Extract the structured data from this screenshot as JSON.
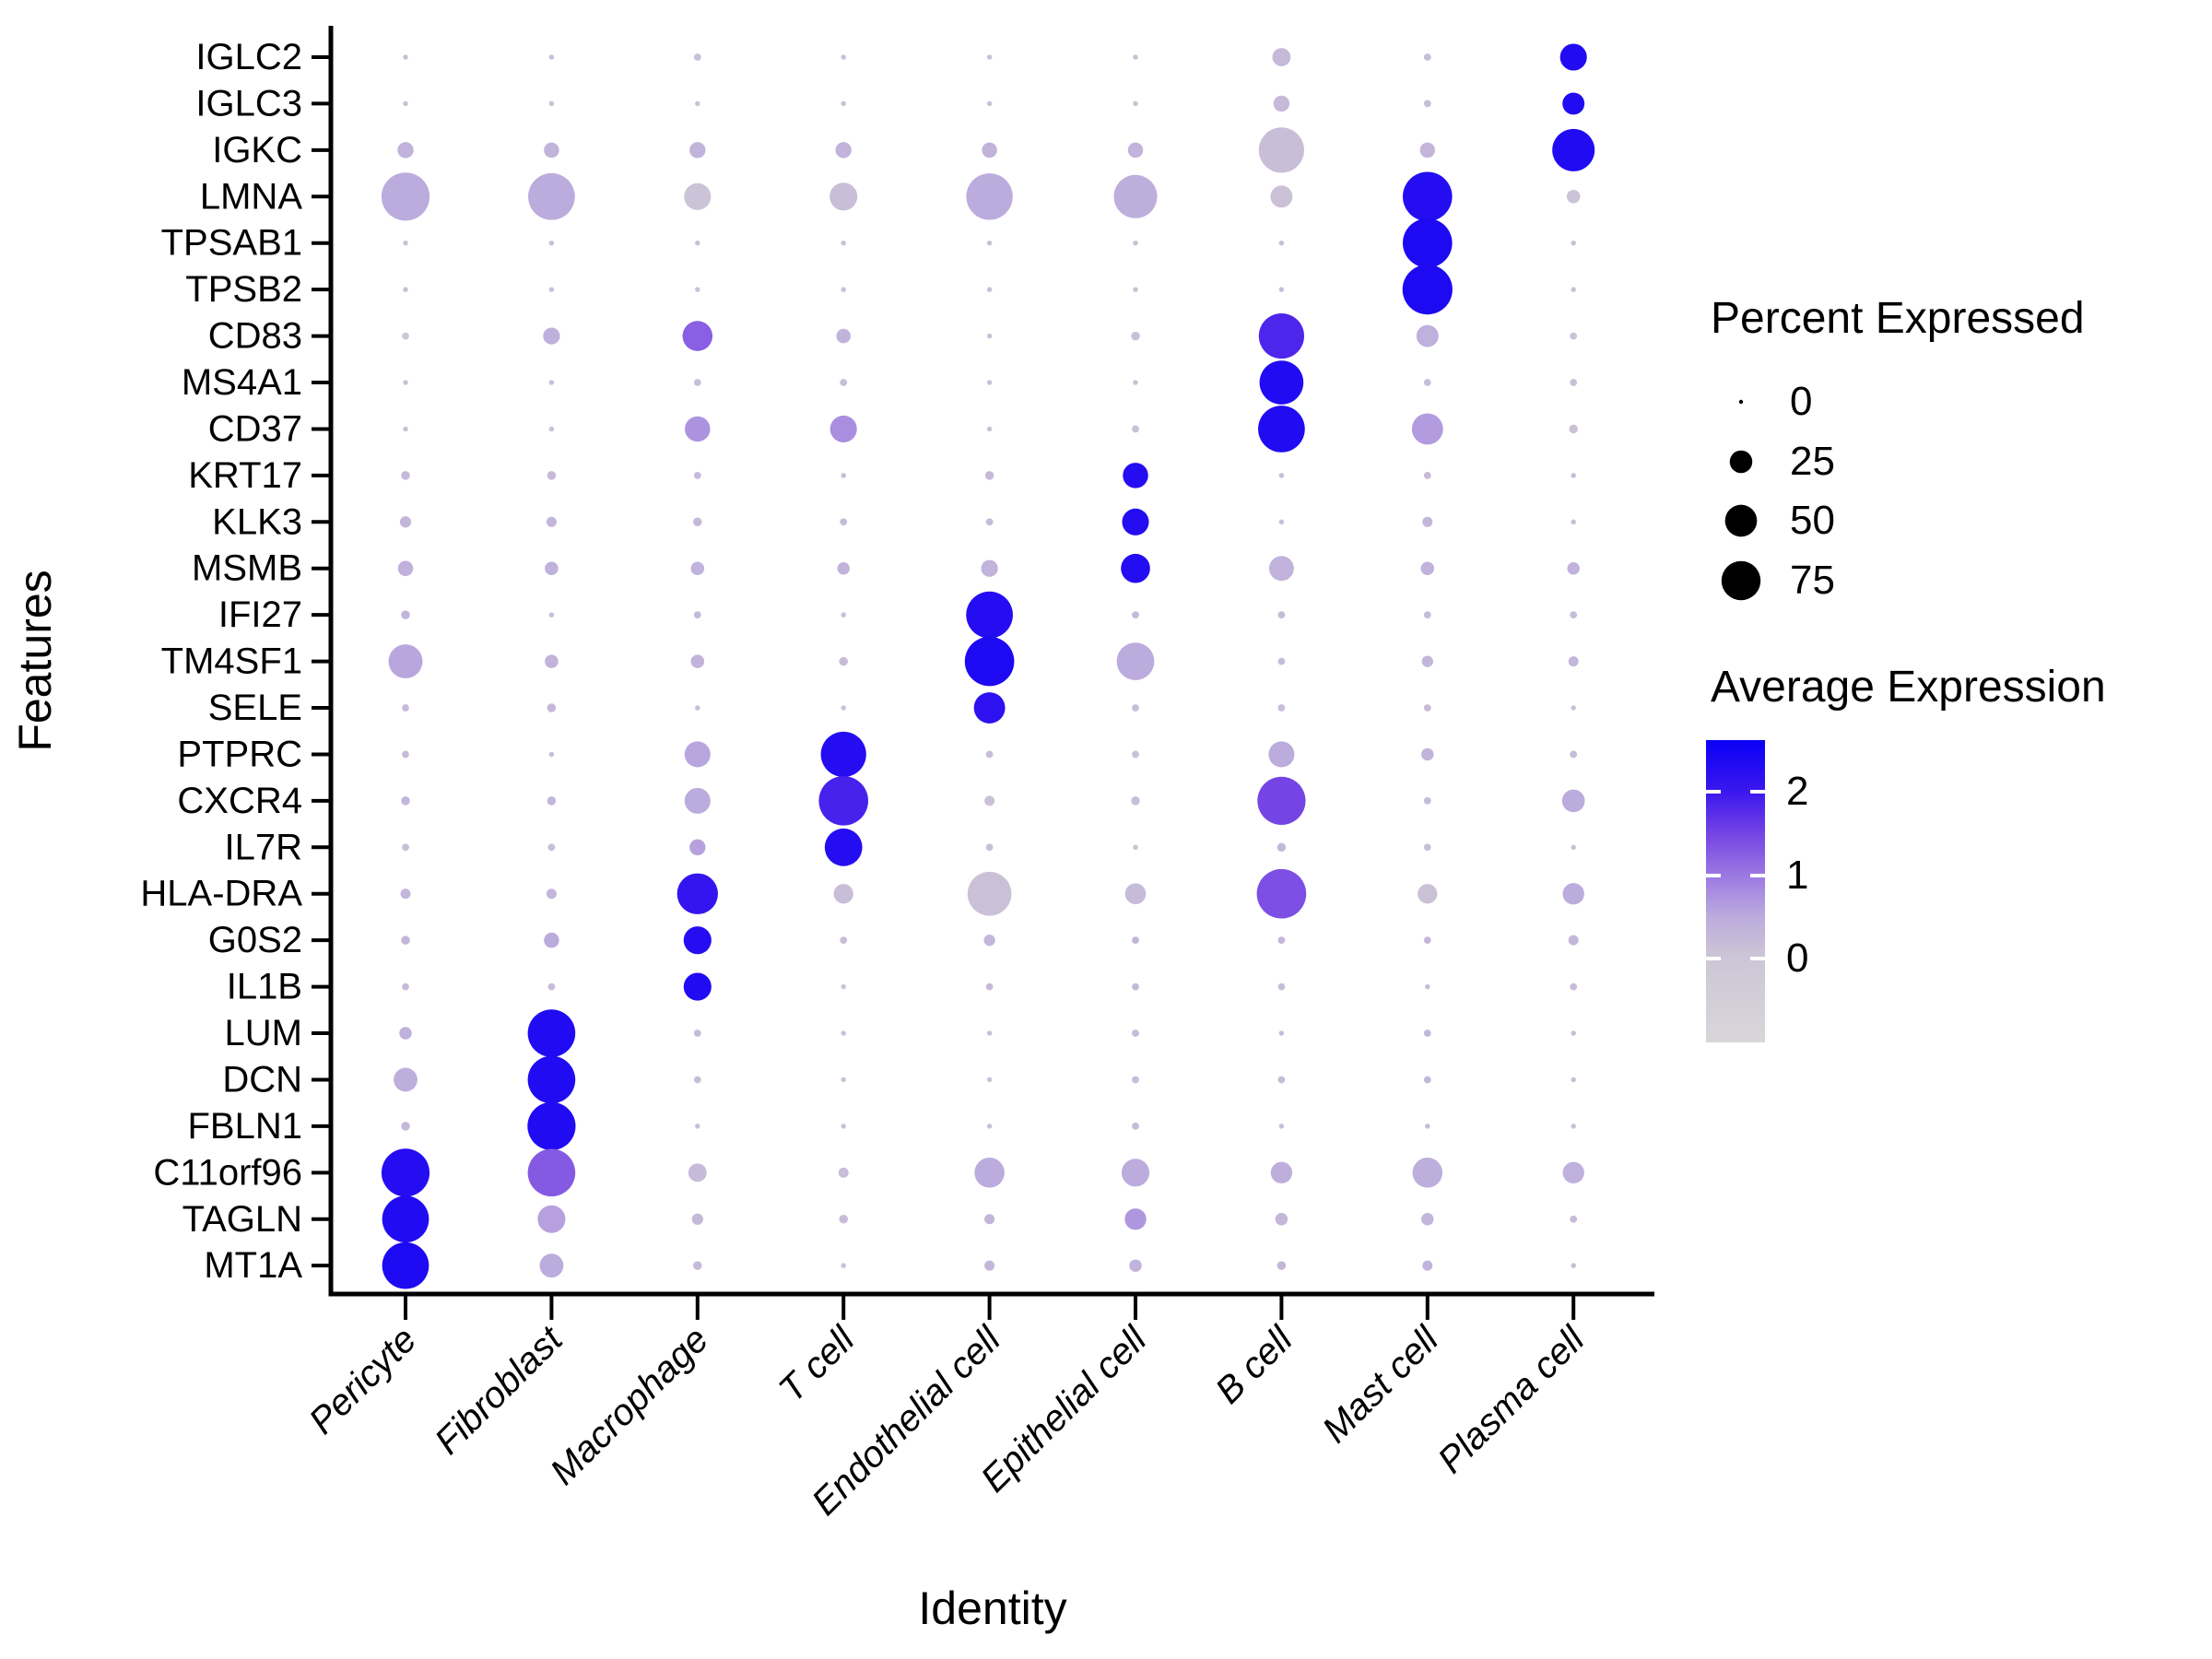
{
  "chart_data": {
    "type": "scatter",
    "subtype": "dotplot",
    "title": "",
    "xlabel": "Identity",
    "ylabel": "Features",
    "grid": false,
    "x_categories": [
      "Pericyte",
      "Fibroblast",
      "Macrophage",
      "T cell",
      "Endothelial cell",
      "Epithelial cell",
      "B cell",
      "Mast cell",
      "Plasma cell"
    ],
    "y_categories": [
      "IGLC2",
      "IGLC3",
      "IGKC",
      "LMNA",
      "TPSAB1",
      "TPSB2",
      "CD83",
      "MS4A1",
      "CD37",
      "KRT17",
      "KLK3",
      "MSMB",
      "IFI27",
      "TM4SF1",
      "SELE",
      "PTPRC",
      "CXCR4",
      "IL7R",
      "HLA-DRA",
      "G0S2",
      "IL1B",
      "LUM",
      "DCN",
      "FBLN1",
      "C11orf96",
      "TAGLN",
      "MT1A"
    ],
    "series": [
      {
        "gene": "IGLC2",
        "percent_expressed": [
          1,
          1,
          2,
          1,
          1,
          1,
          13,
          2,
          28
        ],
        "avg_expression": [
          0.1,
          0.1,
          0.15,
          0.1,
          0.1,
          0.1,
          0.25,
          0.15,
          2.35
        ]
      },
      {
        "gene": "IGLC3",
        "percent_expressed": [
          1,
          1,
          1,
          1,
          1,
          1,
          10,
          2,
          19
        ],
        "avg_expression": [
          0.1,
          0.1,
          0.1,
          0.1,
          0.1,
          0.1,
          0.25,
          0.15,
          2.35
        ]
      },
      {
        "gene": "IGKC",
        "percent_expressed": [
          10,
          9,
          10,
          10,
          9,
          9,
          80,
          9,
          70
        ],
        "avg_expression": [
          0.35,
          0.35,
          0.35,
          0.35,
          0.35,
          0.35,
          0.15,
          0.3,
          2.35
        ]
      },
      {
        "gene": "LMNA",
        "percent_expressed": [
          90,
          85,
          28,
          30,
          84,
          73,
          19,
          95,
          7
        ],
        "avg_expression": [
          0.5,
          0.5,
          0.05,
          0.15,
          0.5,
          0.45,
          0.1,
          2.3,
          0.05
        ]
      },
      {
        "gene": "TPSAB1",
        "percent_expressed": [
          1,
          1,
          1,
          1,
          1,
          1,
          1,
          95,
          1
        ],
        "avg_expression": [
          0.1,
          0.1,
          0.1,
          0.1,
          0.1,
          0.1,
          0.15,
          2.4,
          0.1
        ]
      },
      {
        "gene": "TPSB2",
        "percent_expressed": [
          1,
          1,
          1,
          1,
          1,
          1,
          1,
          97,
          1
        ],
        "avg_expression": [
          0.1,
          0.1,
          0.1,
          0.1,
          0.1,
          0.1,
          0.15,
          2.4,
          0.1
        ]
      },
      {
        "gene": "CD83",
        "percent_expressed": [
          2,
          11,
          35,
          8,
          1,
          3,
          80,
          19,
          2
        ],
        "avg_expression": [
          0.0,
          0.4,
          1.25,
          0.35,
          0.1,
          0.1,
          1.85,
          0.4,
          0.1
        ]
      },
      {
        "gene": "MS4A1",
        "percent_expressed": [
          1,
          1,
          2,
          2,
          1,
          1,
          75,
          2,
          2
        ],
        "avg_expression": [
          0.1,
          0.1,
          0.15,
          0.15,
          0.1,
          0.1,
          2.35,
          0.15,
          0.1
        ]
      },
      {
        "gene": "CD37",
        "percent_expressed": [
          1,
          1,
          25,
          28,
          1,
          2,
          85,
          38,
          3
        ],
        "avg_expression": [
          0.1,
          0.1,
          0.75,
          0.8,
          0.1,
          0.1,
          2.35,
          0.65,
          0.1
        ]
      },
      {
        "gene": "KRT17",
        "percent_expressed": [
          3,
          3,
          2,
          1,
          3,
          25,
          1,
          2,
          1
        ],
        "avg_expression": [
          0.25,
          0.25,
          0.2,
          0.15,
          0.25,
          2.3,
          0.15,
          0.2,
          0.15
        ]
      },
      {
        "gene": "KLK3",
        "percent_expressed": [
          5,
          4,
          3,
          2,
          2,
          28,
          1,
          4,
          1
        ],
        "avg_expression": [
          0.3,
          0.3,
          0.25,
          0.2,
          0.2,
          2.3,
          0.15,
          0.3,
          0.15
        ]
      },
      {
        "gene": "MSMB",
        "percent_expressed": [
          9,
          7,
          7,
          6,
          11,
          33,
          24,
          7,
          6
        ],
        "avg_expression": [
          0.4,
          0.4,
          0.35,
          0.35,
          0.35,
          2.3,
          0.35,
          0.35,
          0.35
        ]
      },
      {
        "gene": "IFI27",
        "percent_expressed": [
          3,
          1,
          2,
          1,
          85,
          2,
          2,
          2,
          2
        ],
        "avg_expression": [
          0.3,
          0.2,
          0.25,
          0.15,
          2.3,
          0.25,
          0.2,
          0.2,
          0.2
        ]
      },
      {
        "gene": "TM4SF1",
        "percent_expressed": [
          45,
          7,
          7,
          3,
          95,
          55,
          2,
          5,
          4
        ],
        "avg_expression": [
          0.55,
          0.35,
          0.35,
          0.2,
          2.4,
          0.5,
          0.2,
          0.3,
          0.3
        ]
      },
      {
        "gene": "SELE",
        "percent_expressed": [
          2,
          3,
          1,
          1,
          38,
          2,
          2,
          2,
          1
        ],
        "avg_expression": [
          0.2,
          0.25,
          0.15,
          0.1,
          2.2,
          0.15,
          0.15,
          0.2,
          0.1
        ]
      },
      {
        "gene": "PTPRC",
        "percent_expressed": [
          2,
          1,
          26,
          80,
          2,
          2,
          26,
          6,
          2
        ],
        "avg_expression": [
          0.2,
          0.15,
          0.55,
          2.3,
          0.15,
          0.1,
          0.5,
          0.35,
          0.2
        ]
      },
      {
        "gene": "CXCR4",
        "percent_expressed": [
          3,
          3,
          26,
          95,
          4,
          3,
          90,
          2,
          20
        ],
        "avg_expression": [
          0.3,
          0.3,
          0.5,
          1.9,
          0.1,
          0.15,
          1.5,
          0.2,
          0.5
        ]
      },
      {
        "gene": "IL7R",
        "percent_expressed": [
          2,
          2,
          10,
          55,
          2,
          1,
          3,
          2,
          1
        ],
        "avg_expression": [
          0.15,
          0.15,
          0.6,
          2.3,
          0.15,
          0.1,
          0.25,
          0.15,
          0.1
        ]
      },
      {
        "gene": "HLA-DRA",
        "percent_expressed": [
          4,
          4,
          65,
          15,
          75,
          17,
          95,
          15,
          18
        ],
        "avg_expression": [
          0.3,
          0.3,
          2.1,
          0.15,
          0.1,
          0.2,
          1.4,
          0.1,
          0.5
        ]
      },
      {
        "gene": "G0S2",
        "percent_expressed": [
          3,
          9,
          30,
          2,
          5,
          2,
          2,
          2,
          4
        ],
        "avg_expression": [
          0.3,
          0.5,
          2.3,
          0.15,
          0.3,
          0.3,
          0.3,
          0.3,
          0.3
        ]
      },
      {
        "gene": "IL1B",
        "percent_expressed": [
          2,
          2,
          30,
          1,
          2,
          2,
          2,
          1,
          2
        ],
        "avg_expression": [
          0.2,
          0.2,
          2.35,
          0.1,
          0.25,
          0.25,
          0.15,
          0.2,
          0.2
        ]
      },
      {
        "gene": "LUM",
        "percent_expressed": [
          6,
          88,
          2,
          1,
          1,
          2,
          1,
          2,
          1
        ],
        "avg_expression": [
          0.4,
          2.35,
          0.2,
          0.1,
          0.1,
          0.2,
          0.2,
          0.3,
          0.15
        ]
      },
      {
        "gene": "DCN",
        "percent_expressed": [
          22,
          88,
          2,
          1,
          1,
          2,
          2,
          2,
          1
        ],
        "avg_expression": [
          0.45,
          2.35,
          0.15,
          0.1,
          0.1,
          0.2,
          0.2,
          0.3,
          0.15
        ]
      },
      {
        "gene": "FBLN1",
        "percent_expressed": [
          3,
          90,
          1,
          1,
          1,
          2,
          1,
          1,
          1
        ],
        "avg_expression": [
          0.25,
          2.35,
          0.15,
          0.1,
          0.1,
          0.2,
          0.15,
          0.2,
          0.1
        ]
      },
      {
        "gene": "C11orf96",
        "percent_expressed": [
          90,
          88,
          13,
          4,
          35,
          30,
          18,
          35,
          18
        ],
        "avg_expression": [
          2.3,
          1.3,
          0.2,
          0.15,
          0.5,
          0.5,
          0.45,
          0.45,
          0.4
        ]
      },
      {
        "gene": "TAGLN",
        "percent_expressed": [
          85,
          30,
          5,
          3,
          4,
          18,
          6,
          6,
          2
        ],
        "avg_expression": [
          2.35,
          0.6,
          0.25,
          0.2,
          0.3,
          0.7,
          0.3,
          0.3,
          0.2
        ]
      },
      {
        "gene": "MT1A",
        "percent_expressed": [
          85,
          22,
          3,
          1,
          4,
          6,
          3,
          4,
          1
        ],
        "avg_expression": [
          2.4,
          0.5,
          0.2,
          0.1,
          0.3,
          0.35,
          0.3,
          0.35,
          0.15
        ]
      }
    ],
    "size_legend": {
      "title": "Percent Expressed",
      "breaks": [
        0,
        25,
        50,
        75
      ]
    },
    "color_legend": {
      "title": "Average Expression",
      "ticks": [
        2,
        1,
        0
      ],
      "domain": [
        -1.0,
        2.65
      ],
      "stops": [
        {
          "v": -1.0,
          "c": "#d9d6da"
        },
        {
          "v": 0.0,
          "c": "#cdc6d6"
        },
        {
          "v": 0.5,
          "c": "#bcabdd"
        },
        {
          "v": 1.0,
          "c": "#9c7ae2"
        },
        {
          "v": 1.5,
          "c": "#7544e4"
        },
        {
          "v": 2.0,
          "c": "#3c18ee"
        },
        {
          "v": 2.65,
          "c": "#0a00f5"
        }
      ]
    },
    "axis_color": "#000000",
    "background_color": "#ffffff"
  }
}
